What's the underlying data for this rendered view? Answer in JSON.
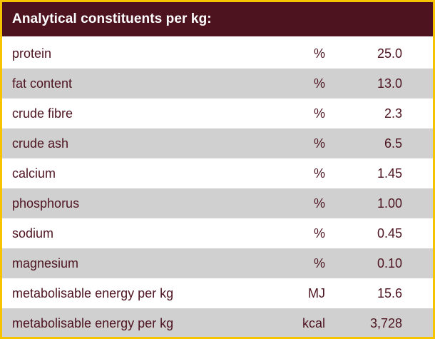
{
  "table": {
    "title": "Analytical constituents per kg:",
    "rows": [
      {
        "name": "protein",
        "unit": "%",
        "value": "25.0"
      },
      {
        "name": "fat content",
        "unit": "%",
        "value": "13.0"
      },
      {
        "name": "crude fibre",
        "unit": "%",
        "value": "2.3"
      },
      {
        "name": "crude ash",
        "unit": "%",
        "value": "6.5"
      },
      {
        "name": "calcium",
        "unit": "%",
        "value": "1.45"
      },
      {
        "name": "phosphorus",
        "unit": "%",
        "value": "1.00"
      },
      {
        "name": "sodium",
        "unit": "%",
        "value": "0.45"
      },
      {
        "name": "magnesium",
        "unit": "%",
        "value": "0.10"
      },
      {
        "name": "metabolisable energy per kg",
        "unit": "MJ",
        "value": "15.6"
      },
      {
        "name": "metabolisable energy per kg",
        "unit": "kcal",
        "value": "3,728"
      }
    ]
  },
  "colors": {
    "border": "#f6c400",
    "header_bg": "#4d1420",
    "text": "#4d1420",
    "row_alt_bg": "#d0d0d0"
  }
}
